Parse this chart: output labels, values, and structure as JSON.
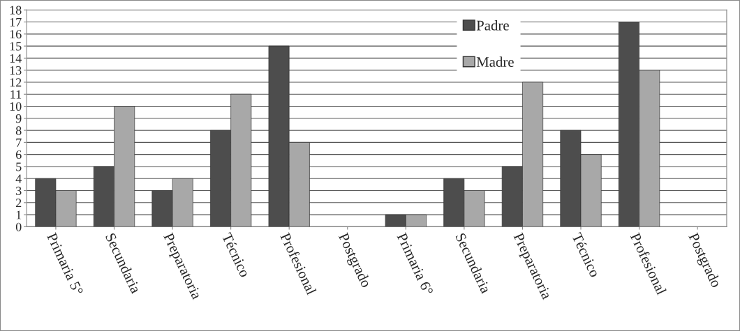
{
  "chart_data": {
    "type": "bar",
    "categories": [
      "Primaria 5°",
      "Secundaria",
      "Preparatoria",
      "Técnico",
      "Profesional",
      "Postgrado",
      "Primaria 6°",
      "Secundaria",
      "Preparatoria",
      "Técnico",
      "Profesional",
      "Postgrado"
    ],
    "series": [
      {
        "name": "Padre",
        "color": "#4d4d4d",
        "values": [
          4,
          5,
          3,
          8,
          15,
          null,
          1,
          4,
          5,
          8,
          17,
          null
        ]
      },
      {
        "name": "Madre",
        "color": "#a8a8a8",
        "values": [
          3,
          10,
          4,
          11,
          7,
          null,
          1,
          3,
          12,
          6,
          13,
          null
        ]
      }
    ],
    "ylim": [
      0,
      18
    ],
    "yticks": [
      0,
      1,
      2,
      3,
      4,
      5,
      6,
      7,
      8,
      9,
      10,
      11,
      12,
      13,
      14,
      15,
      16,
      17,
      18
    ],
    "grid": "y",
    "legend": "top"
  }
}
